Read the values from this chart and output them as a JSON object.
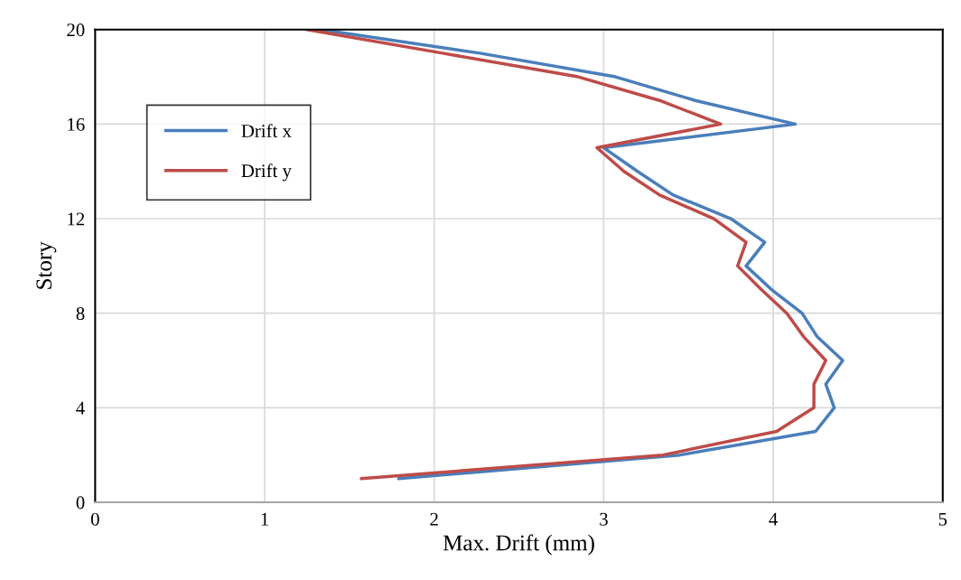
{
  "chart_data": {
    "type": "line",
    "xlabel": "Max. Drift (mm)",
    "ylabel": "Story",
    "xlim": [
      0,
      5
    ],
    "xticks": [
      0,
      1,
      2,
      3,
      4,
      5
    ],
    "ylim": [
      0,
      20
    ],
    "yticks": [
      0,
      4,
      8,
      12,
      16,
      20
    ],
    "grid": true,
    "legend": "top left",
    "marker": "none",
    "line_style": "solid",
    "series": [
      {
        "name": "Drift x",
        "color": "#4a7ebb",
        "x": [
          1.79,
          3.45,
          4.25,
          4.36,
          4.31,
          4.41,
          4.26,
          4.17,
          3.99,
          3.84,
          3.95,
          3.75,
          3.41,
          3.2,
          3.0,
          4.13,
          3.54,
          3.07,
          2.27,
          1.33
        ],
        "values": [
          1,
          2,
          3,
          4,
          5,
          6,
          7,
          8,
          9,
          10,
          11,
          12,
          13,
          14,
          15,
          16,
          17,
          18,
          19,
          20
        ]
      },
      {
        "name": "Drift y",
        "color": "#be4b48",
        "x": [
          1.57,
          3.35,
          4.02,
          4.24,
          4.24,
          4.31,
          4.18,
          4.08,
          3.93,
          3.79,
          3.84,
          3.65,
          3.33,
          3.12,
          2.96,
          3.69,
          3.33,
          2.85,
          2.05,
          1.25
        ],
        "values": [
          1,
          2,
          3,
          4,
          5,
          6,
          7,
          8,
          9,
          10,
          11,
          12,
          13,
          14,
          15,
          16,
          17,
          18,
          19,
          20
        ]
      }
    ]
  }
}
